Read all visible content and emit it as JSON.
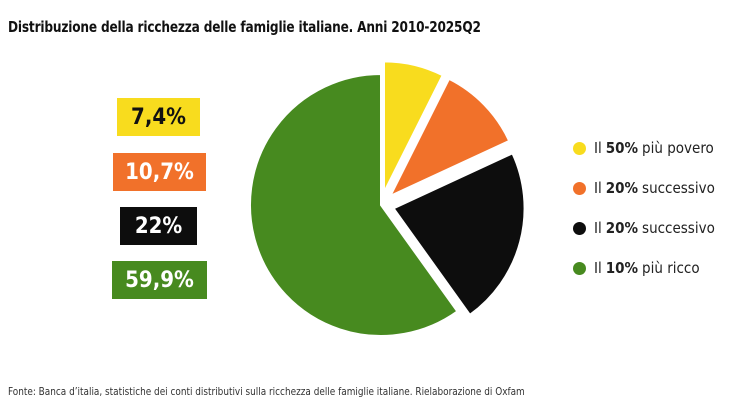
{
  "chart_data": {
    "type": "pie",
    "title": "Distribuzione della ricchezza delle famiglie italiane. Anni 2010-2025Q2",
    "slices": [
      {
        "prefix": "Il",
        "bold": "50%",
        "suffix": "più povero",
        "value": 7.4,
        "label": "7,4%",
        "color": "#f8dc1e"
      },
      {
        "prefix": "Il",
        "bold": "20%",
        "suffix": "successivo",
        "value": 10.7,
        "label": "10,7%",
        "color": "#f1712a"
      },
      {
        "prefix": "Il",
        "bold": "20%",
        "suffix": "successivo",
        "value": 22,
        "label": "22%",
        "color": "#0d0d0d"
      },
      {
        "prefix": "Il",
        "bold": "10%",
        "suffix": "più ricco",
        "value": 59.9,
        "label": "59,9%",
        "color": "#478a1f"
      }
    ],
    "legend_position": "right",
    "source": "Fonte: Banca d’italia, statistiche dei conti distributivi sulla ricchezza delle famiglie italiane. Rielaborazione di Oxfam"
  }
}
